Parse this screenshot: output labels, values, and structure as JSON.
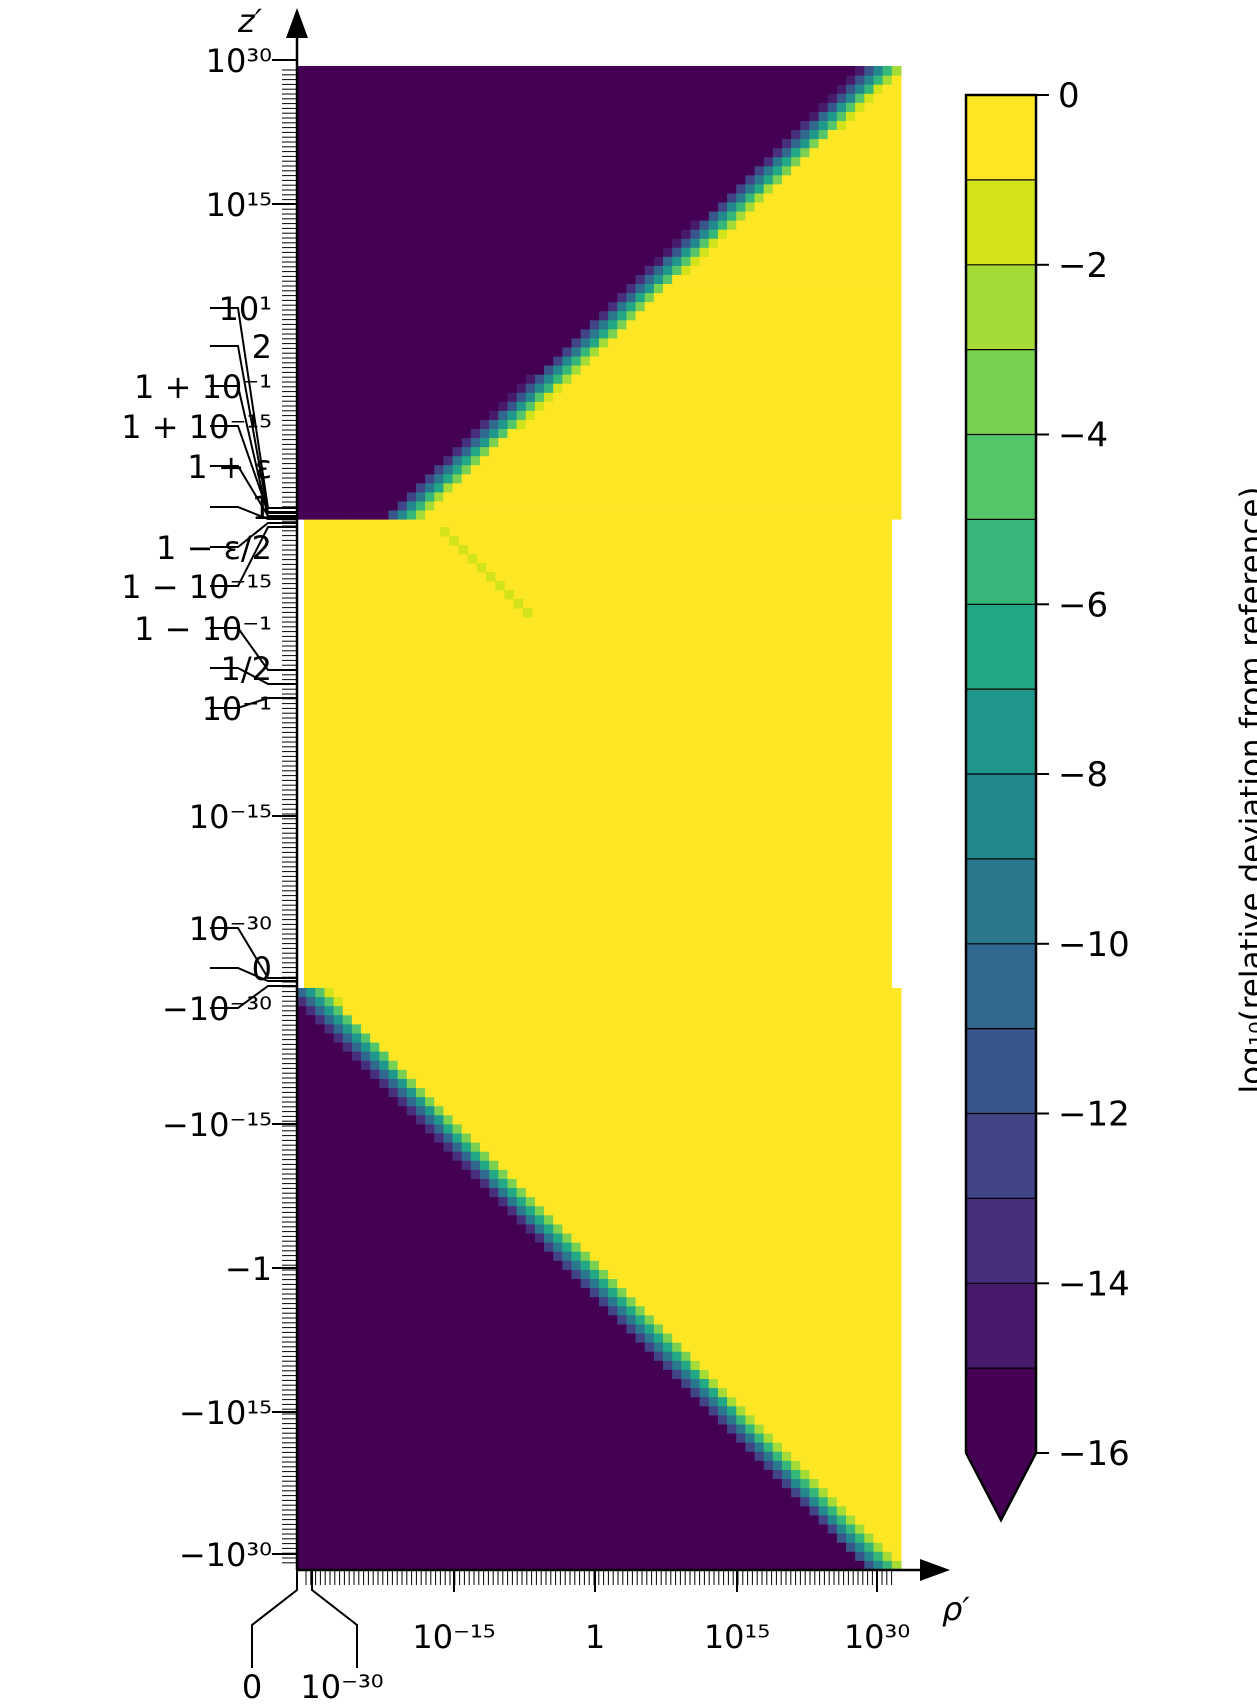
{
  "chart_data": {
    "type": "heatmap",
    "x_axis": {
      "label": "ρ′",
      "scale": "symlog",
      "ticks": [
        "0",
        "10⁻³⁰",
        "10⁻¹⁵",
        "1",
        "10¹⁵",
        "10³⁰"
      ]
    },
    "y_axis": {
      "label": "z′",
      "scale": "symlog",
      "ticks": [
        "10³⁰",
        "10¹⁵",
        "10¹",
        "2",
        "1 + 10⁻¹",
        "1 + 10⁻¹⁵",
        "1 + ε",
        "1",
        "1 − ε/2",
        "1 − 10⁻¹⁵",
        "1 − 10⁻¹",
        "1/2",
        "10⁻¹",
        "10⁻¹⁵",
        "10⁻³⁰",
        "0",
        "−10⁻³⁰",
        "−10⁻¹⁵",
        "−1",
        "−10¹⁵",
        "−10³⁰"
      ]
    },
    "colorbar": {
      "label": "log₁₀(relative deviation from reference)",
      "range": [
        -16,
        0
      ],
      "ticks": [
        "0",
        "−2",
        "−4",
        "−6",
        "−8",
        "−10",
        "−12",
        "−14",
        "−16"
      ],
      "levels": 16,
      "extend": "min",
      "colors": [
        "#440154",
        "#481a6c",
        "#472f7d",
        "#414487",
        "#39568c",
        "#31688e",
        "#2a788e",
        "#23888e",
        "#1f988b",
        "#22a884",
        "#35b779",
        "#54c568",
        "#7ad151",
        "#a5db36",
        "#d2e21b",
        "#fde725"
      ]
    },
    "regions": [
      {
        "z_range": [
          "10³⁰",
          "1"
        ],
        "accurate_for": "ρ′ < z′ (log ρ′ below log z′)",
        "value": -16
      },
      {
        "z_range": [
          "1",
          "10⁻³⁰"
        ],
        "value": 0
      },
      {
        "z_range": [
          "−10⁻³⁰",
          "−10³⁰"
        ],
        "accurate_for": "ρ′ < |z′|",
        "value": -16
      }
    ]
  }
}
